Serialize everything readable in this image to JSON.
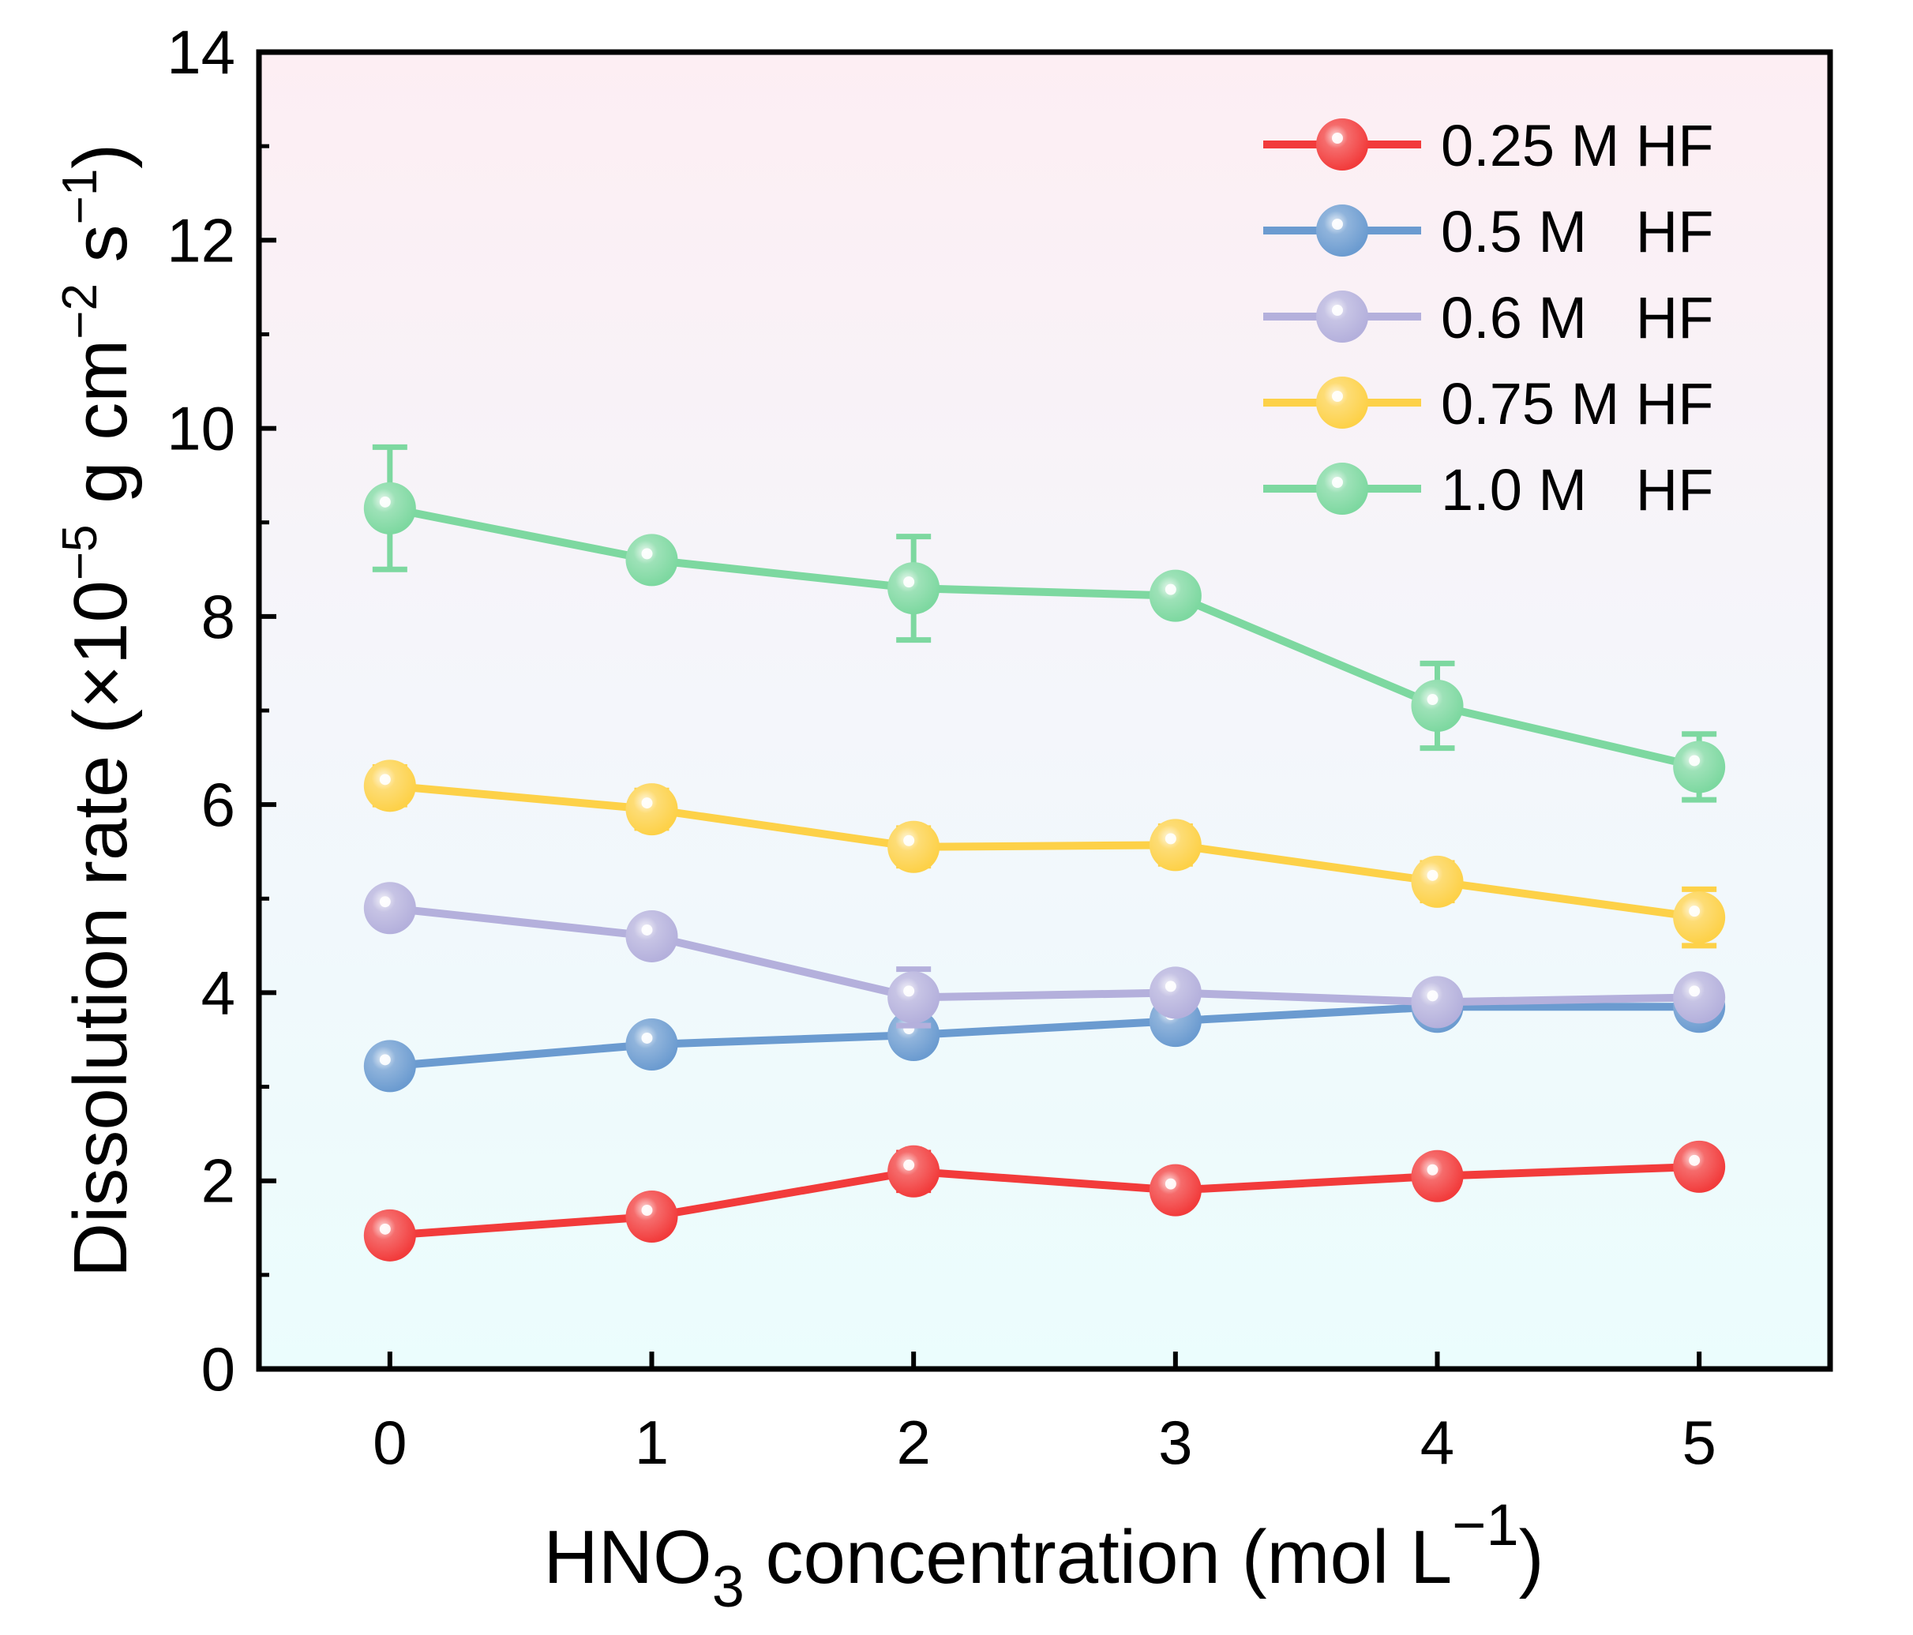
{
  "chart_data": {
    "type": "line",
    "title": "",
    "xlabel": "HNO",
    "xlabel_sub": "3",
    "xlabel_rest": " concentration (mol L",
    "xlabel_sup": "−1",
    "xlabel_close": ")",
    "ylabel": "Dissolution rate (×10",
    "ylabel_sup1": "−5",
    "ylabel_mid": " g cm",
    "ylabel_sup2": "−2",
    "ylabel_mid2": " s",
    "ylabel_sup3": "−1",
    "ylabel_close": ")",
    "x": [
      0,
      1,
      2,
      3,
      4,
      5
    ],
    "xlim": [
      -0.5,
      5.5
    ],
    "ylim": [
      0,
      14
    ],
    "xticks": [
      "0",
      "1",
      "2",
      "3",
      "4",
      "5"
    ],
    "yticks": [
      "0",
      "2",
      "4",
      "6",
      "8",
      "10",
      "12",
      "14"
    ],
    "legend_position": "top-right",
    "series": [
      {
        "name": "0.25 M HF",
        "color": "#f23b3b",
        "values": [
          1.42,
          1.62,
          2.1,
          1.9,
          2.05,
          2.15
        ],
        "errors": [
          0.15,
          0.15,
          0.2,
          0.15,
          0.15,
          0.15
        ]
      },
      {
        "name": "0.5 M   HF",
        "color": "#6b9bd0",
        "values": [
          3.22,
          3.45,
          3.55,
          3.7,
          3.85,
          3.85
        ],
        "errors": [
          0.15,
          0.15,
          0.15,
          0.15,
          0.1,
          0.1
        ]
      },
      {
        "name": "0.6 M   HF",
        "color": "#b4b0dc",
        "values": [
          4.9,
          4.6,
          3.95,
          4.0,
          3.9,
          3.95
        ],
        "errors": [
          0.15,
          0.15,
          0.3,
          0.15,
          0.1,
          0.1
        ]
      },
      {
        "name": "0.75 M HF",
        "color": "#fdd148",
        "values": [
          6.2,
          5.95,
          5.55,
          5.57,
          5.18,
          4.8
        ],
        "errors": [
          0.2,
          0.2,
          0.2,
          0.2,
          0.2,
          0.3
        ]
      },
      {
        "name": "1.0 M   HF",
        "color": "#7dd8a0",
        "values": [
          9.15,
          8.6,
          8.3,
          8.22,
          7.05,
          6.4
        ],
        "errors": [
          0.65,
          0.15,
          0.55,
          0.15,
          0.45,
          0.35
        ]
      }
    ]
  }
}
